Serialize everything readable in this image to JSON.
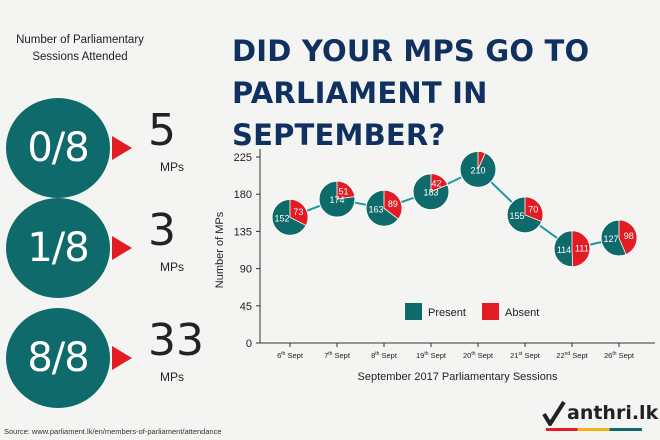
{
  "left_panel": {
    "heading": "Number of Parliamentary Sessions Attended",
    "rows": [
      {
        "ratio": "0/8",
        "count": "5",
        "unit": "MPs"
      },
      {
        "ratio": "1/8",
        "count": "3",
        "unit": "MPs"
      },
      {
        "ratio": "8/8",
        "count": "33",
        "unit": "MPs"
      }
    ]
  },
  "title": "DID YOUR MPS GO TO PARLIAMENT IN SEPTEMBER?",
  "source": "Source: www.parliament.lk/en/members-of-parliament/attendance",
  "logo": {
    "text": "anthri.lk"
  },
  "colors": {
    "present": "#0f6b6b",
    "absent": "#e31b23",
    "title": "#10305f",
    "line": "#1a9aa0"
  },
  "chart_data": {
    "type": "line",
    "categories": [
      "6th Sept",
      "7th Sept",
      "8th Sept",
      "19th Sept",
      "20th Sept",
      "21st Sept",
      "22nd Sept",
      "26th Sept"
    ],
    "category_parts": [
      [
        "6",
        "th",
        " Sept"
      ],
      [
        "7",
        "th",
        " Sept"
      ],
      [
        "8",
        "th",
        " Sept"
      ],
      [
        "19",
        "th",
        " Sept"
      ],
      [
        "20",
        "th",
        " Sept"
      ],
      [
        "21",
        "st",
        " Sept"
      ],
      [
        "22",
        "nd",
        " Sept"
      ],
      [
        "26",
        "th",
        " Sept"
      ]
    ],
    "series": [
      {
        "name": "Present",
        "values": [
          152,
          174,
          163,
          183,
          210,
          155,
          114,
          127
        ]
      },
      {
        "name": "Absent",
        "values": [
          73,
          51,
          89,
          42,
          15,
          70,
          111,
          98
        ]
      }
    ],
    "absent_labels": [
      "73",
      "51",
      "89",
      "42",
      "",
      "70",
      "111",
      "98"
    ],
    "xlabel": "September 2017 Parliamentary Sessions",
    "ylabel": "Number of MPs",
    "ylim": [
      0,
      225
    ],
    "yticks": [
      0,
      45,
      90,
      135,
      180,
      225
    ],
    "legend": [
      {
        "label": "Present"
      },
      {
        "label": "Absent"
      }
    ]
  }
}
